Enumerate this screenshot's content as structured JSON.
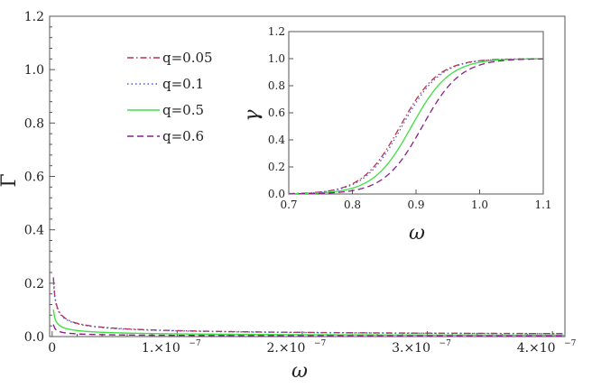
{
  "chart_data": [
    {
      "type": "line",
      "id": "main",
      "xlabel": "ω",
      "ylabel": "Γ",
      "xlim": [
        -2e-09,
        4.1e-07
      ],
      "ylim": [
        0,
        1.2
      ],
      "yticks": [
        0.0,
        0.2,
        0.4,
        0.6,
        0.8,
        1.0,
        1.2
      ],
      "ytick_labels": [
        "0.0",
        "0.2",
        "0.4",
        "0.6",
        "0.8",
        "1.0",
        "1.2"
      ],
      "xticks": [
        0,
        1e-07,
        2e-07,
        3e-07,
        4e-07
      ],
      "xtick_labels": [
        {
          "text": "0",
          "exp": ""
        },
        {
          "text": "1.×10",
          "exp": "−7"
        },
        {
          "text": "2.×10",
          "exp": "−7"
        },
        {
          "text": "3.×10",
          "exp": "−7"
        },
        {
          "text": "4.×10",
          "exp": "−7"
        }
      ],
      "legend_position": "upper-left",
      "series": [
        {
          "name": "q=0.05",
          "color": "#c0304a",
          "style": "dashdot",
          "k": 0.0222
        },
        {
          "name": "q=0.1",
          "color": "#4a5bd0",
          "style": "dotted",
          "k": 0.0214
        },
        {
          "name": "q=0.5",
          "color": "#3fe03f",
          "style": "solid",
          "k": 0.0101
        },
        {
          "name": "q=0.6",
          "color": "#8a1f8a",
          "style": "dashed",
          "k": 0.0045
        }
      ]
    },
    {
      "type": "line",
      "id": "inset",
      "xlabel": "ω",
      "ylabel": "γ",
      "xlim": [
        0.7,
        1.1
      ],
      "ylim": [
        0,
        1.2
      ],
      "yticks": [
        0.0,
        0.2,
        0.4,
        0.6,
        0.8,
        1.0,
        1.2
      ],
      "ytick_labels": [
        "0.0",
        "0.2",
        "0.4",
        "0.6",
        "0.8",
        "1.0",
        "1.2"
      ],
      "xticks": [
        0.7,
        0.8,
        0.9,
        1.0,
        1.1
      ],
      "xtick_labels": [
        "0.7",
        "0.8",
        "0.9",
        "1.0",
        "1.1"
      ],
      "series": [
        {
          "name": "q=0.05",
          "color": "#c0304a",
          "style": "dashdot",
          "center": 0.875,
          "width": 0.03
        },
        {
          "name": "q=0.1",
          "color": "#4a5bd0",
          "style": "dotted",
          "center": 0.878,
          "width": 0.03
        },
        {
          "name": "q=0.5",
          "color": "#3fe03f",
          "style": "solid",
          "center": 0.893,
          "width": 0.03
        },
        {
          "name": "q=0.6",
          "color": "#8a1f8a",
          "style": "dashed",
          "center": 0.91,
          "width": 0.03
        }
      ]
    }
  ]
}
